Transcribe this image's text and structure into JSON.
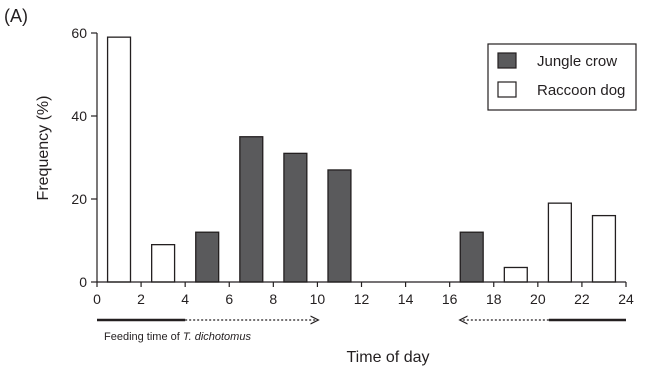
{
  "chart_data": {
    "type": "bar",
    "panel_label": "(A)",
    "xlabel": "Time of day",
    "ylabel": "Frequency (%)",
    "x_ticks": [
      "0",
      "2",
      "4",
      "6",
      "8",
      "10",
      "12",
      "14",
      "16",
      "18",
      "20",
      "22",
      "24"
    ],
    "y_ticks": [
      "0",
      "20",
      "40",
      "60"
    ],
    "xlim": [
      0,
      24
    ],
    "ylim": [
      0,
      60
    ],
    "bin_width_hours": 2,
    "series": [
      {
        "name": "Jungle crow",
        "color": "#5a5a5c",
        "points": [
          {
            "x": 5,
            "y": 12
          },
          {
            "x": 7,
            "y": 35
          },
          {
            "x": 9,
            "y": 31
          },
          {
            "x": 11,
            "y": 27
          },
          {
            "x": 17,
            "y": 12
          }
        ]
      },
      {
        "name": "Raccoon dog",
        "color": "#ffffff",
        "points": [
          {
            "x": 1,
            "y": 59
          },
          {
            "x": 3,
            "y": 9
          },
          {
            "x": 19,
            "y": 3.5
          },
          {
            "x": 21,
            "y": 19
          },
          {
            "x": 23,
            "y": 16
          }
        ]
      }
    ],
    "legend": {
      "position": "top-right"
    },
    "annotation": {
      "label_prefix": "Feeding time of ",
      "label_species": "T. dichotomus",
      "arrows": [
        {
          "solid_from": 0,
          "solid_to": 4,
          "dotted_to": 10
        },
        {
          "solid_from": 24,
          "solid_to": 20.5,
          "dotted_to": 16.5
        }
      ]
    }
  }
}
